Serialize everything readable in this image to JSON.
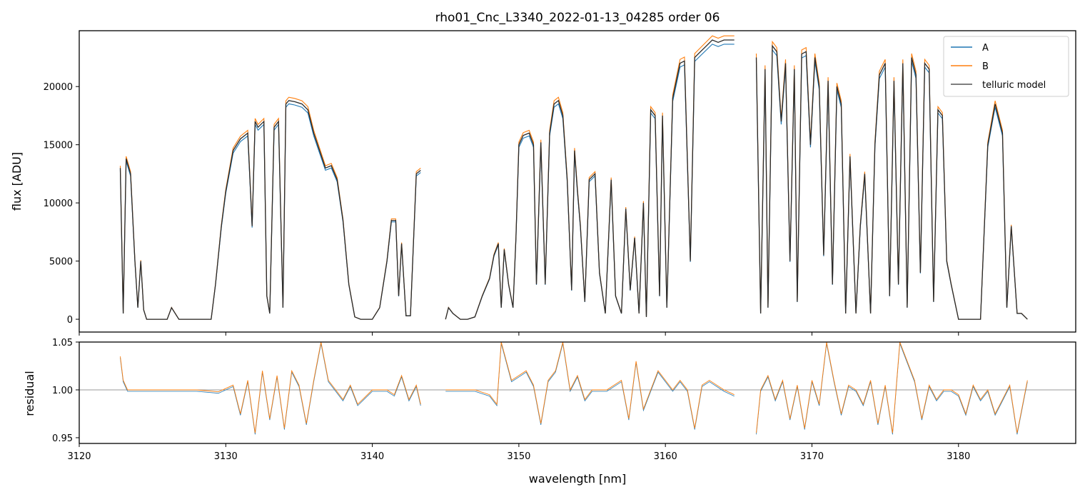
{
  "chart_data": [
    {
      "panel": "flux",
      "type": "line",
      "title": "rho01_Cnc_L3340_2022-01-13_04285  order 06",
      "ylabel": "flux [ADU]",
      "xlabel": "",
      "xlim": [
        3120,
        3188
      ],
      "ylim": [
        -1100,
        24800
      ],
      "yticks": [
        0,
        5000,
        10000,
        15000,
        20000
      ],
      "ytick_labels": [
        "0",
        "5000",
        "10000",
        "15000",
        "20000"
      ],
      "legend": {
        "placement": "top-right",
        "entries": [
          "A",
          "B",
          "telluric model"
        ]
      },
      "colors": {
        "A": "#1f77b4",
        "B": "#ff7f0e",
        "telluric model": "#2a2a2a"
      },
      "segments": [
        {
          "x": [
            3122.8,
            3123.0,
            3123.2,
            3123.5,
            3123.8,
            3124.0,
            3124.2,
            3124.4,
            3124.6,
            3124.8,
            3125.0,
            3125.5,
            3126.0,
            3126.3,
            3126.8,
            3127.5,
            3128.0,
            3128.5,
            3129.0,
            3129.3,
            3129.7,
            3130.0,
            3130.5,
            3131.0,
            3131.5,
            3131.8,
            3132.0,
            3132.2,
            3132.6,
            3132.8,
            3133.0,
            3133.3,
            3133.6,
            3133.9,
            3134.1,
            3134.3,
            3134.7,
            3135.2,
            3135.6,
            3136.0,
            3136.4,
            3136.8,
            3137.2,
            3137.6,
            3138.0,
            3138.4,
            3138.8,
            3139.2,
            3139.6,
            3140.0,
            3140.5,
            3141.0,
            3141.3,
            3141.6,
            3141.8,
            3142.0,
            3142.3,
            3142.6,
            3143.0,
            3143.3
          ],
          "y": [
            13000,
            500,
            13800,
            12500,
            5000,
            1000,
            5000,
            800,
            0,
            0,
            0,
            0,
            0,
            1000,
            0,
            0,
            0,
            0,
            0,
            3000,
            8000,
            11000,
            14500,
            15500,
            16000,
            8000,
            17000,
            16500,
            17000,
            2000,
            500,
            16500,
            17000,
            1000,
            18500,
            18800,
            18700,
            18500,
            18000,
            16000,
            14500,
            13000,
            13200,
            12000,
            8500,
            3000,
            200,
            0,
            0,
            0,
            1000,
            5000,
            8500,
            8500,
            2000,
            6500,
            300,
            300,
            12500,
            12800
          ]
        },
        {
          "x": [
            3145.0,
            3145.2,
            3145.5,
            3146.0,
            3146.5,
            3147.0,
            3147.5,
            3148.0,
            3148.3,
            3148.6,
            3148.8,
            3149.0,
            3149.3,
            3149.6,
            3149.8,
            3150.0,
            3150.3,
            3150.7,
            3151.0,
            3151.2,
            3151.5,
            3151.8,
            3152.1,
            3152.4,
            3152.7,
            3153.0,
            3153.3,
            3153.6,
            3153.8,
            3154.0,
            3154.2,
            3154.5,
            3154.8,
            3155.2,
            3155.5,
            3155.9,
            3156.3,
            3156.6,
            3157.0,
            3157.3,
            3157.6,
            3157.9,
            3158.2,
            3158.5,
            3158.7,
            3159.0,
            3159.3,
            3159.6,
            3159.8,
            3160.1,
            3160.5,
            3161.0,
            3161.3,
            3161.7,
            3162.0,
            3162.4,
            3162.8,
            3163.2,
            3163.6,
            3164.0,
            3164.5,
            3164.7
          ],
          "y": [
            0,
            1000,
            500,
            0,
            0,
            200,
            2000,
            3500,
            5500,
            6500,
            1000,
            6000,
            3000,
            1000,
            7000,
            15000,
            15800,
            16000,
            15000,
            3000,
            15200,
            3000,
            16000,
            18500,
            18800,
            17500,
            12000,
            2500,
            14500,
            11000,
            8000,
            1500,
            12000,
            12500,
            4000,
            500,
            12000,
            2000,
            500,
            9500,
            2500,
            7000,
            500,
            10000,
            200,
            18000,
            17500,
            2000,
            17500,
            1000,
            19000,
            22000,
            22200,
            5000,
            22500,
            23000,
            23500,
            24000,
            23800,
            24000,
            24000,
            24000
          ]
        },
        {
          "x": [
            3166.2,
            3166.5,
            3166.8,
            3167.0,
            3167.3,
            3167.6,
            3167.9,
            3168.2,
            3168.5,
            3168.8,
            3169.0,
            3169.3,
            3169.6,
            3169.9,
            3170.2,
            3170.5,
            3170.8,
            3171.1,
            3171.4,
            3171.7,
            3172.0,
            3172.3,
            3172.6,
            3173.0,
            3173.3,
            3173.6,
            3174.0,
            3174.3,
            3174.6,
            3175.0,
            3175.3,
            3175.6,
            3175.9,
            3176.2,
            3176.5,
            3176.8,
            3177.1,
            3177.4,
            3177.7,
            3178.0,
            3178.3,
            3178.6,
            3178.9,
            3179.2,
            3179.5,
            3180.0,
            3180.5,
            3181.0,
            3181.5,
            3182.0,
            3182.5,
            3183.0,
            3183.3,
            3183.6,
            3184.0,
            3184.3,
            3184.7
          ],
          "y": [
            22500,
            500,
            21500,
            1000,
            23500,
            23000,
            17000,
            22000,
            5000,
            21500,
            1500,
            22800,
            23000,
            15000,
            22500,
            20000,
            5500,
            20500,
            3000,
            20000,
            18500,
            500,
            14000,
            500,
            8000,
            12500,
            500,
            15000,
            21000,
            22000,
            2000,
            20500,
            3000,
            22000,
            1000,
            22500,
            21000,
            4000,
            22000,
            21500,
            1500,
            18000,
            17500,
            5000,
            3000,
            0,
            0,
            0,
            0,
            15000,
            18500,
            16000,
            1000,
            8000,
            500,
            500,
            0
          ]
        }
      ]
    },
    {
      "panel": "residual",
      "type": "line",
      "xlabel": "wavelength [nm]",
      "ylabel": "residual",
      "xlim": [
        3120,
        3188
      ],
      "ylim": [
        0.944,
        1.05
      ],
      "yticks": [
        0.95,
        1.0,
        1.05
      ],
      "ytick_labels": [
        "0.95",
        "1.00",
        "1.05"
      ],
      "xticks": [
        3120,
        3130,
        3140,
        3150,
        3160,
        3170,
        3180
      ],
      "xtick_labels": [
        "3120",
        "3130",
        "3140",
        "3150",
        "3160",
        "3170",
        "3180"
      ],
      "reference_line": 1.0,
      "segments": [
        {
          "x": [
            3122.8,
            3123.0,
            3123.3,
            3124.0,
            3126.0,
            3128.0,
            3129.5,
            3130.5,
            3131.0,
            3131.5,
            3132.0,
            3132.5,
            3133.0,
            3133.5,
            3134.0,
            3134.5,
            3135.0,
            3135.5,
            3136.0,
            3136.5,
            3137.0,
            3137.5,
            3138.0,
            3138.5,
            3139.0,
            3140.0,
            3141.0,
            3141.5,
            3142.0,
            3142.5,
            3143.0,
            3143.3
          ],
          "y": [
            1.035,
            1.01,
            1.0,
            1.0,
            1.0,
            1.0,
            0.998,
            1.005,
            0.975,
            1.01,
            0.955,
            1.02,
            0.97,
            1.015,
            0.96,
            1.02,
            1.005,
            0.965,
            1.01,
            1.05,
            1.01,
            1.0,
            0.99,
            1.005,
            0.985,
            1.0,
            1.0,
            0.995,
            1.015,
            0.99,
            1.005,
            0.985
          ]
        },
        {
          "x": [
            3145.0,
            3146.0,
            3147.0,
            3148.0,
            3148.5,
            3148.8,
            3149.5,
            3150.0,
            3150.5,
            3151.0,
            3151.5,
            3152.0,
            3152.5,
            3153.0,
            3153.5,
            3154.0,
            3154.5,
            3155.0,
            3156.0,
            3157.0,
            3157.5,
            3158.0,
            3158.5,
            3159.0,
            3159.5,
            3160.0,
            3160.5,
            3161.0,
            3161.5,
            3162.0,
            3162.5,
            3163.0,
            3164.0,
            3164.7
          ],
          "y": [
            1.0,
            1.0,
            1.0,
            0.995,
            0.985,
            1.05,
            1.01,
            1.015,
            1.02,
            1.005,
            0.965,
            1.01,
            1.02,
            1.05,
            1.0,
            1.015,
            0.99,
            1.0,
            1.0,
            1.01,
            0.97,
            1.03,
            0.98,
            1.0,
            1.02,
            1.01,
            1.0,
            1.01,
            1.0,
            0.96,
            1.005,
            1.01,
            1.0,
            0.995
          ]
        },
        {
          "x": [
            3166.2,
            3166.5,
            3167.0,
            3167.5,
            3168.0,
            3168.5,
            3169.0,
            3169.5,
            3170.0,
            3170.5,
            3171.0,
            3171.5,
            3172.0,
            3172.5,
            3173.0,
            3173.5,
            3174.0,
            3174.5,
            3175.0,
            3175.5,
            3176.0,
            3176.5,
            3177.0,
            3177.5,
            3178.0,
            3178.5,
            3179.0,
            3179.5,
            3180.0,
            3180.5,
            3181.0,
            3181.5,
            3182.0,
            3182.5,
            3183.0,
            3183.5,
            3184.0,
            3184.7
          ],
          "y": [
            0.955,
            1.0,
            1.015,
            0.99,
            1.01,
            0.97,
            1.005,
            0.96,
            1.01,
            0.985,
            1.05,
            1.01,
            0.975,
            1.005,
            1.0,
            0.985,
            1.01,
            0.965,
            1.005,
            0.955,
            1.05,
            1.03,
            1.01,
            0.97,
            1.005,
            0.99,
            1.0,
            1.0,
            0.995,
            0.975,
            1.005,
            0.99,
            1.0,
            0.975,
            0.99,
            1.005,
            0.955,
            1.01
          ]
        }
      ]
    }
  ]
}
